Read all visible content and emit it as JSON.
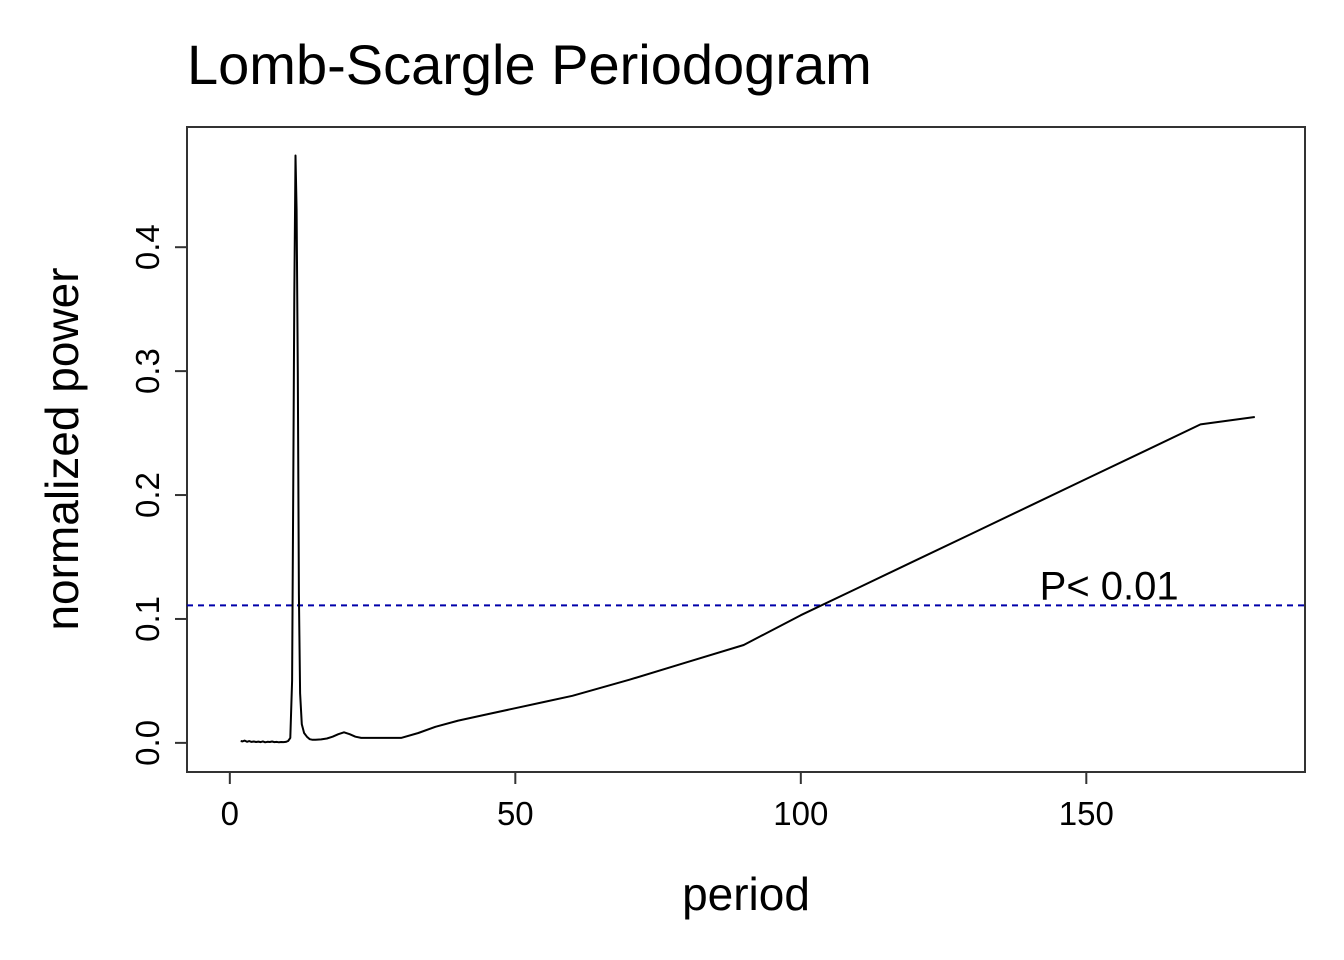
{
  "chart_data": {
    "type": "line",
    "title": "Lomb-Scargle Periodogram",
    "xlabel": "period",
    "ylabel": "normalized power",
    "xlim": [
      -7.5,
      188.3
    ],
    "ylim": [
      -0.0235,
      0.497
    ],
    "x_ticks": [
      0,
      50,
      100,
      150
    ],
    "x_tick_labels": [
      "0",
      "50",
      "100",
      "150"
    ],
    "y_ticks": [
      0.0,
      0.1,
      0.2,
      0.3,
      0.4
    ],
    "y_tick_labels": [
      "0.0",
      "0.1",
      "0.2",
      "0.3",
      "0.4"
    ],
    "grid": false,
    "series": [
      {
        "color": "#000000",
        "x": [
          1.9,
          2.2,
          2.6,
          3.0,
          3.4,
          3.8,
          4.2,
          4.6,
          5.0,
          5.4,
          5.8,
          6.2,
          6.6,
          7.0,
          7.4,
          7.8,
          8.2,
          8.6,
          9.0,
          9.4,
          9.8,
          10.2,
          10.6,
          10.9,
          11.1,
          11.3,
          11.5,
          11.7,
          11.9,
          12.1,
          12.3,
          12.6,
          13.0,
          13.5,
          14.0,
          14.5,
          15.0,
          16.0,
          17.0,
          18.0,
          19.0,
          20.0,
          21.0,
          22.0,
          23.0,
          24.0,
          26.0,
          28.0,
          30.0,
          33.0,
          36.0,
          40.0,
          45.0,
          50.0,
          55.0,
          60.0,
          70.0,
          80.0,
          90.0,
          100.0,
          110.0,
          120.0,
          130.0,
          140.0,
          150.0,
          160.0,
          170.0,
          179.5
        ],
        "y": [
          0.0015,
          0.0012,
          0.0018,
          0.0009,
          0.0014,
          0.0008,
          0.0011,
          0.0007,
          0.001,
          0.0006,
          0.0012,
          0.0005,
          0.0009,
          0.0007,
          0.0011,
          0.0006,
          0.0008,
          0.0005,
          0.0007,
          0.0006,
          0.0008,
          0.0015,
          0.004,
          0.05,
          0.2,
          0.36,
          0.474,
          0.43,
          0.3,
          0.12,
          0.04,
          0.015,
          0.008,
          0.005,
          0.003,
          0.0025,
          0.0025,
          0.0028,
          0.0035,
          0.005,
          0.007,
          0.0085,
          0.007,
          0.005,
          0.004,
          0.004,
          0.004,
          0.004,
          0.004,
          0.008,
          0.013,
          0.018,
          0.023,
          0.028,
          0.033,
          0.038,
          0.051,
          0.065,
          0.079,
          0.103,
          0.125,
          0.147,
          0.169,
          0.191,
          0.213,
          0.235,
          0.257,
          0.263
        ]
      }
    ],
    "threshold": {
      "y": 0.111,
      "color": "#0000aa",
      "style": "dashed",
      "label": "P< 0.01",
      "label_x": 154
    }
  }
}
